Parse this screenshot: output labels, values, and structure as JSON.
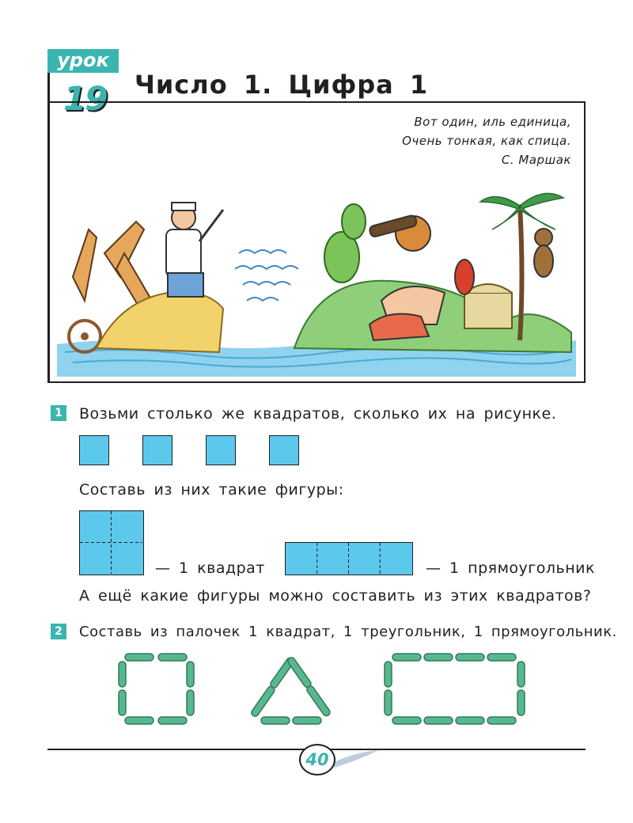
{
  "lesson": {
    "label": "урок",
    "number": "19"
  },
  "title": "Число 1. Цифра 1",
  "poem": {
    "lines": [
      "Вот один, иль единица,",
      "Очень тонкая, как спица."
    ],
    "author": "С. Маршак"
  },
  "task1": {
    "number": "1",
    "instruction": "Возьми столько же квадратов, сколько их на рисунке.",
    "compose_prompt": "Составь из них такие фигуры:",
    "square_caption": "— 1 квадрат",
    "rectangle_caption": "— 1 прямоугольник",
    "question": "А ещё какие фигуры можно составить из этих квадратов?"
  },
  "task2": {
    "number": "2",
    "instruction": "Составь из палочек 1 квадрат, 1 треугольник, 1 прямоугольник."
  },
  "footer": {
    "page_number": "40"
  },
  "colors": {
    "accent": "#3bb5b0",
    "square_fill": "#5bc8ec",
    "stick_green": "#4aa882"
  }
}
